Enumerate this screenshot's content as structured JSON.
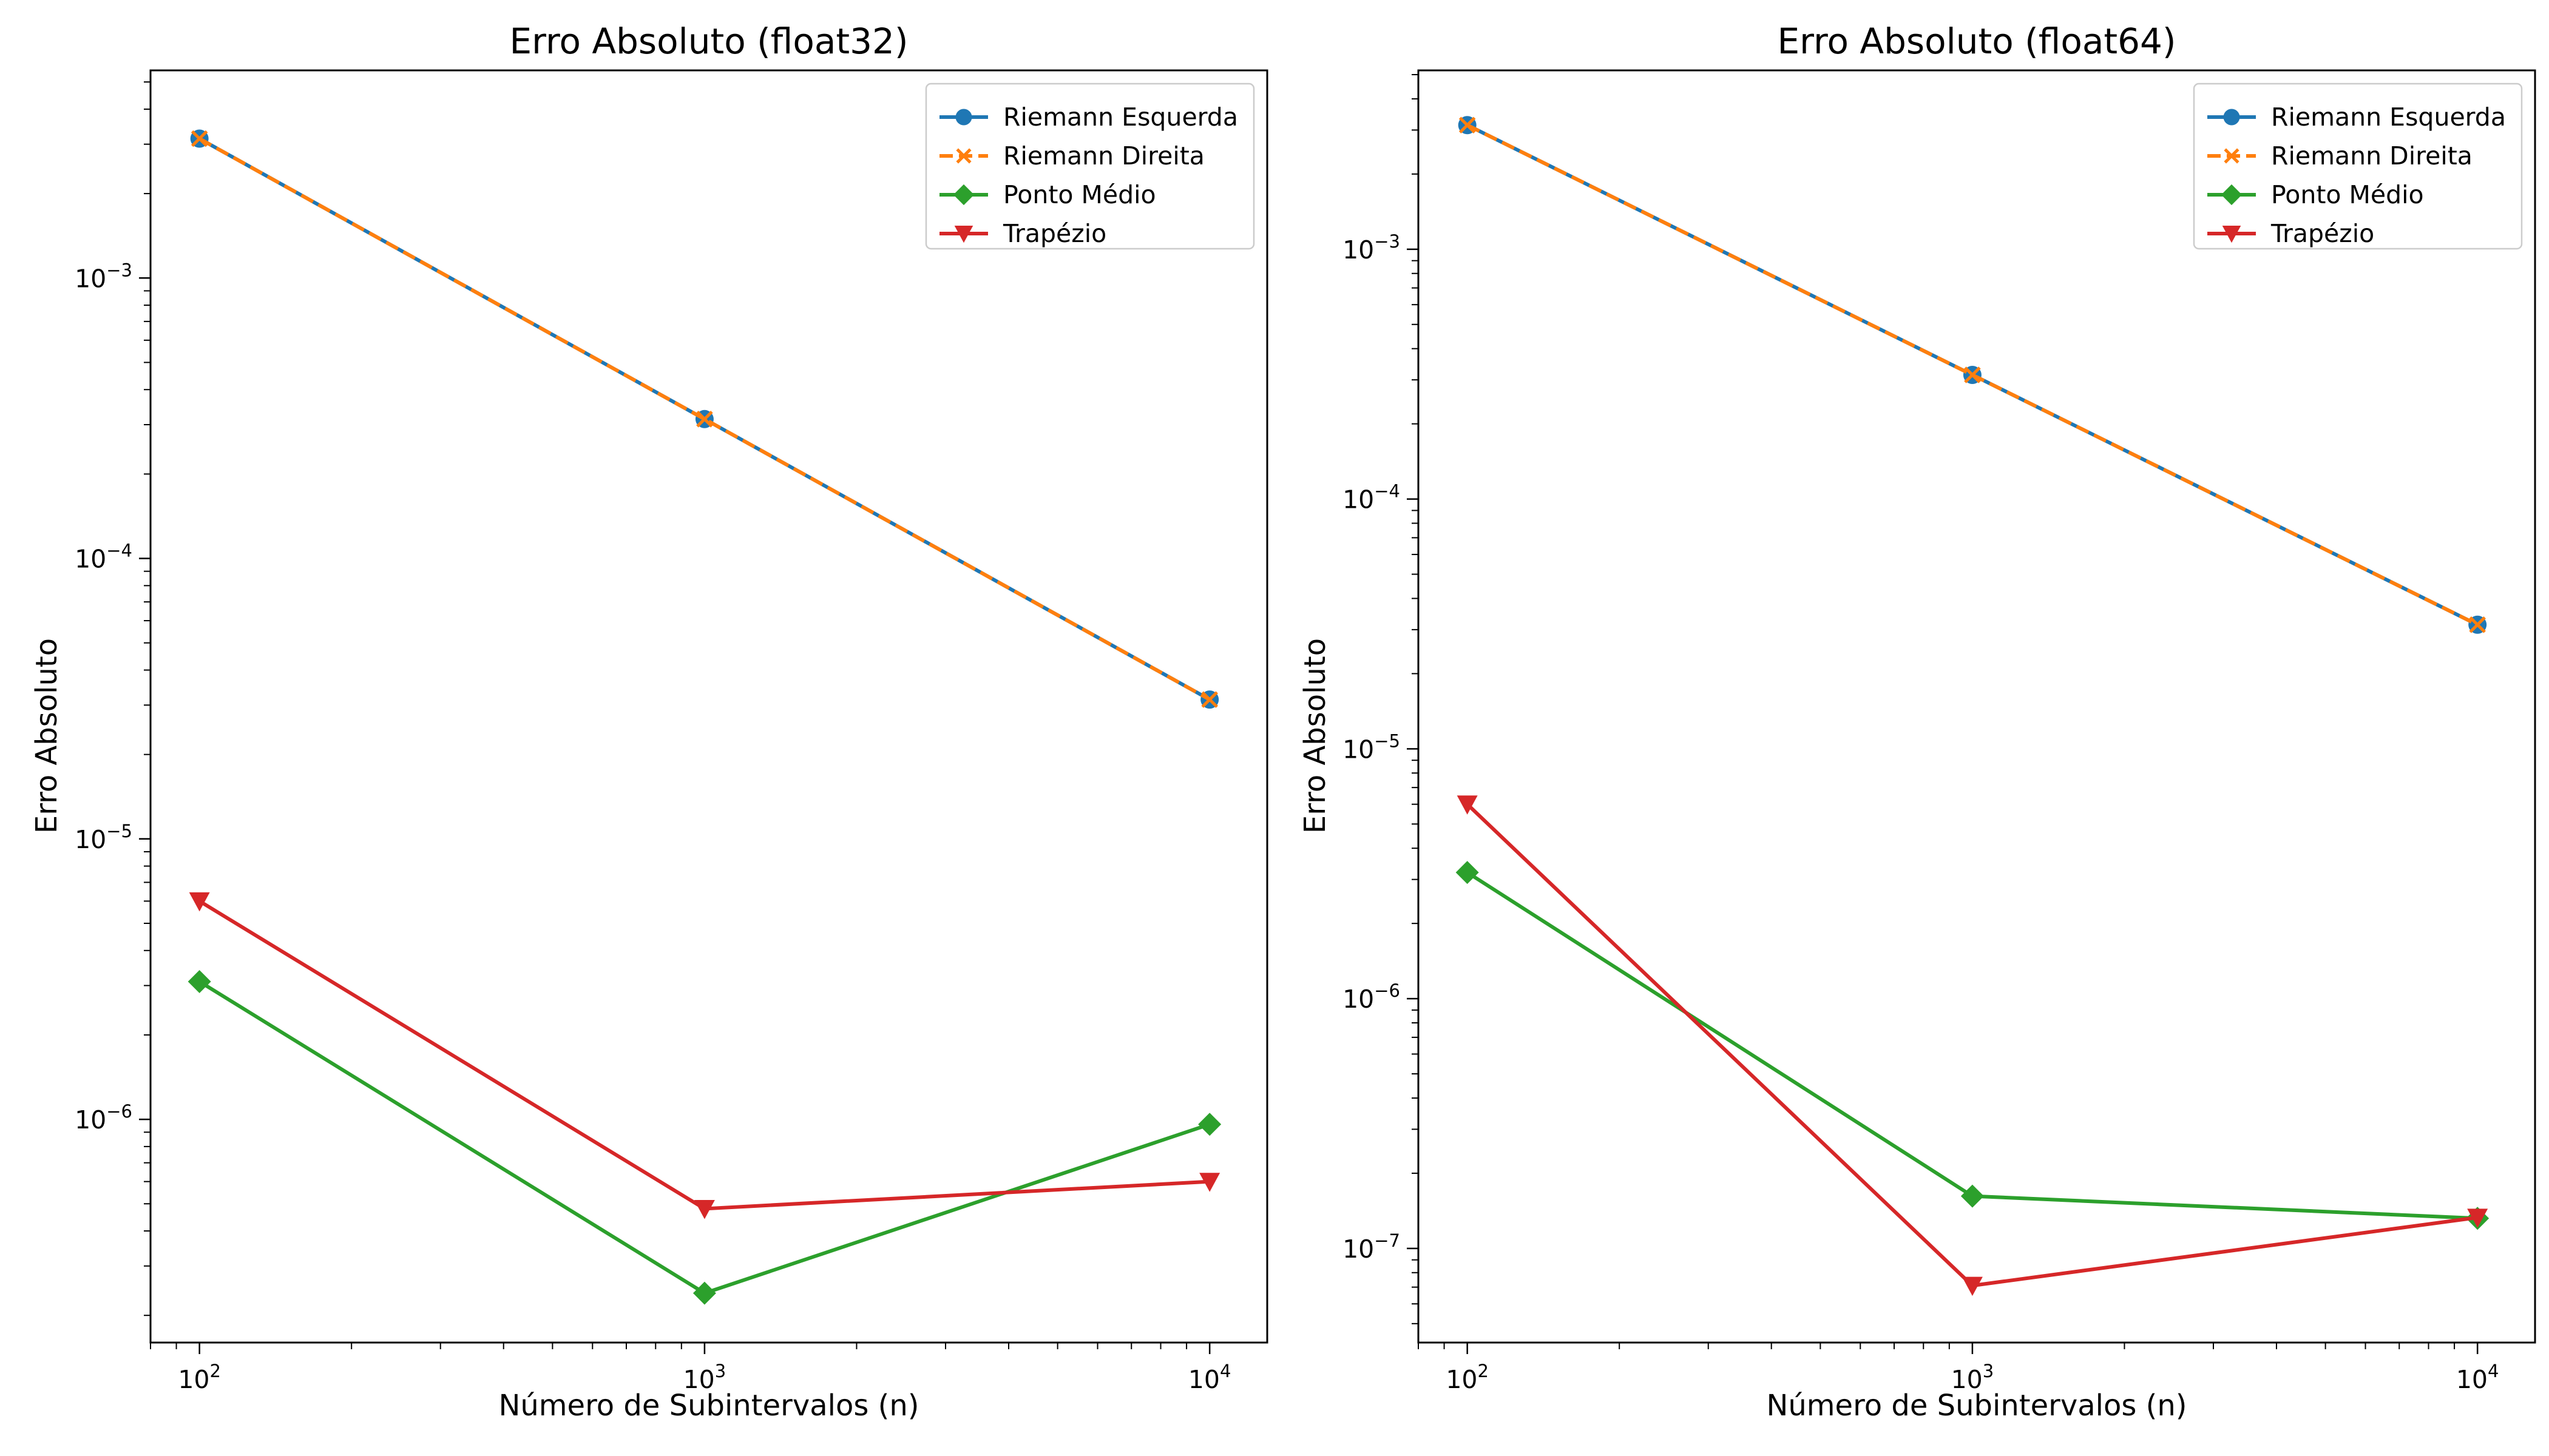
{
  "colors": {
    "Riemann Esquerda": "#1f77b4",
    "Riemann Direita": "#ff7f0e",
    "Ponto Médio": "#2ca02c",
    "Trapézio": "#d62728"
  },
  "chart_data": [
    {
      "type": "line",
      "title": "Erro Absoluto (float32)",
      "xlabel": "Número de Subintervalos (n)",
      "ylabel": "Erro Absoluto",
      "xscale": "log",
      "yscale": "log",
      "xlim": [
        80,
        13000
      ],
      "ylim": [
        1.6e-07,
        0.0055
      ],
      "x": [
        100,
        1000,
        10000
      ],
      "x_ticks": [
        {
          "base": "10",
          "exp": "2",
          "value": 100
        },
        {
          "base": "10",
          "exp": "3",
          "value": 1000
        },
        {
          "base": "10",
          "exp": "4",
          "value": 10000
        }
      ],
      "y_ticks": [
        {
          "base": "10",
          "exp": "−3",
          "value": 0.001
        },
        {
          "base": "10",
          "exp": "−4",
          "value": 0.0001
        },
        {
          "base": "10",
          "exp": "−5",
          "value": 1e-05
        },
        {
          "base": "10",
          "exp": "−6",
          "value": 1e-06
        }
      ],
      "legend": "top-right",
      "series": [
        {
          "name": "Riemann Esquerda",
          "marker": "circle",
          "dash": "solid",
          "values": [
            0.00314,
            0.000314,
            3.14e-05
          ]
        },
        {
          "name": "Riemann Direita",
          "marker": "x",
          "dash": "dashed",
          "values": [
            0.00314,
            0.000314,
            3.14e-05
          ]
        },
        {
          "name": "Ponto Médio",
          "marker": "diamond",
          "dash": "solid",
          "values": [
            3.1e-06,
            2.4e-07,
            9.6e-07
          ]
        },
        {
          "name": "Trapézio",
          "marker": "triangle-down",
          "dash": "solid",
          "values": [
            6e-06,
            4.8e-07,
            6e-07
          ]
        }
      ]
    },
    {
      "type": "line",
      "title": "Erro Absoluto (float64)",
      "xlabel": "Número de Subintervalos (n)",
      "ylabel": "Erro Absoluto",
      "xscale": "log",
      "yscale": "log",
      "xlim": [
        80,
        13000
      ],
      "ylim": [
        4.2e-08,
        0.0052
      ],
      "x": [
        100,
        1000,
        10000
      ],
      "x_ticks": [
        {
          "base": "10",
          "exp": "2",
          "value": 100
        },
        {
          "base": "10",
          "exp": "3",
          "value": 1000
        },
        {
          "base": "10",
          "exp": "4",
          "value": 10000
        }
      ],
      "y_ticks": [
        {
          "base": "10",
          "exp": "−3",
          "value": 0.001
        },
        {
          "base": "10",
          "exp": "−4",
          "value": 0.0001
        },
        {
          "base": "10",
          "exp": "−5",
          "value": 1e-05
        },
        {
          "base": "10",
          "exp": "−6",
          "value": 1e-06
        },
        {
          "base": "10",
          "exp": "−7",
          "value": 1e-07
        }
      ],
      "legend": "top-right",
      "series": [
        {
          "name": "Riemann Esquerda",
          "marker": "circle",
          "dash": "solid",
          "values": [
            0.00314,
            0.000314,
            3.14e-05
          ]
        },
        {
          "name": "Riemann Direita",
          "marker": "x",
          "dash": "dashed",
          "values": [
            0.00314,
            0.000314,
            3.14e-05
          ]
        },
        {
          "name": "Ponto Médio",
          "marker": "diamond",
          "dash": "solid",
          "values": [
            3.2e-06,
            1.62e-07,
            1.32e-07
          ]
        },
        {
          "name": "Trapézio",
          "marker": "triangle-down",
          "dash": "solid",
          "values": [
            6e-06,
            7.1e-08,
            1.33e-07
          ]
        }
      ]
    }
  ]
}
